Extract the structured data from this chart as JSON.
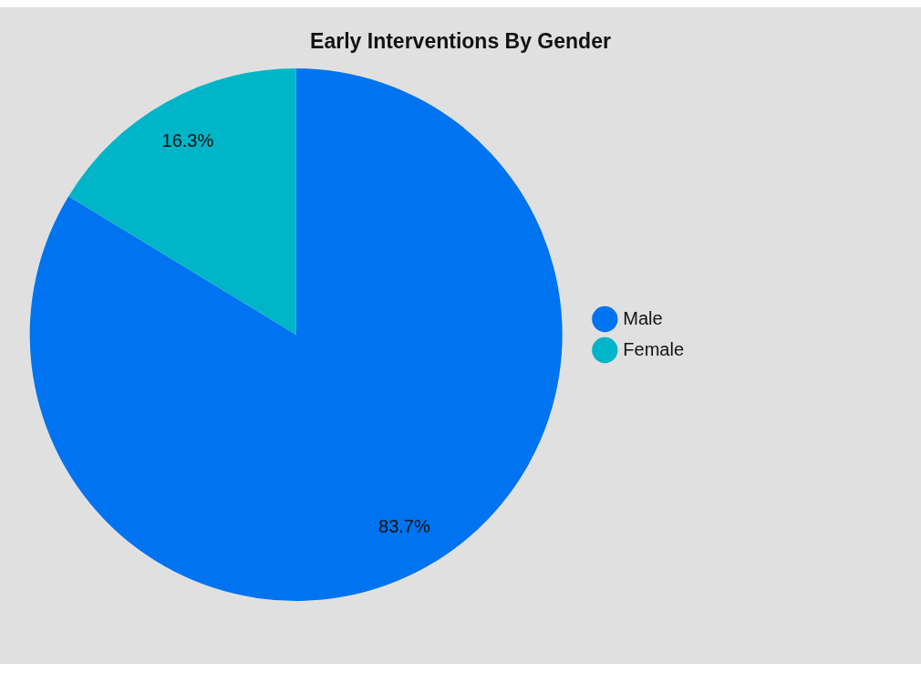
{
  "chart_data": {
    "type": "pie",
    "title": "Early Interventions By Gender",
    "categories": [
      "Male",
      "Female"
    ],
    "values": [
      83.7,
      16.3
    ],
    "colors": [
      "#0073f0",
      "#00b5c8"
    ],
    "value_labels": [
      "83.7%",
      "16.3%"
    ],
    "legend": "right"
  }
}
